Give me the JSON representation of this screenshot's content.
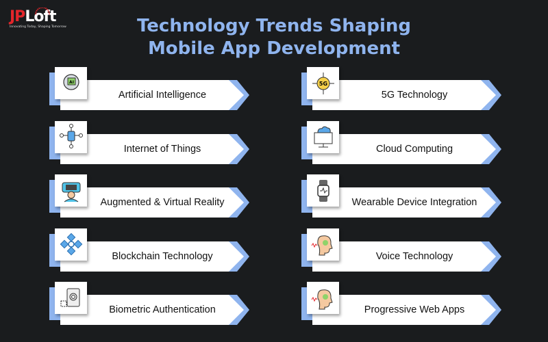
{
  "logo": {
    "brand_red": "JP",
    "brand_white": "Loft",
    "tagline": "Innovating Today, Shaping Tomorrow"
  },
  "title": {
    "line1": "Technology Trends Shaping",
    "line2": "Mobile App Development"
  },
  "colors": {
    "background": "#1a1c1e",
    "accent": "#8fb4ee",
    "brand_red": "#e3262b"
  },
  "items": [
    {
      "label": "Artificial Intelligence",
      "icon": "ai-head-icon"
    },
    {
      "label": "Internet of Things",
      "icon": "iot-network-icon"
    },
    {
      "label": "Augmented & Virtual Reality",
      "icon": "vr-headset-icon"
    },
    {
      "label": "Blockchain Technology",
      "icon": "blockchain-icon"
    },
    {
      "label": "Biometric Authentication",
      "icon": "fingerprint-icon"
    },
    {
      "label": "5G Technology",
      "icon": "5g-icon"
    },
    {
      "label": "Cloud Computing",
      "icon": "cloud-computer-icon"
    },
    {
      "label": "Wearable Device Integration",
      "icon": "smartwatch-icon"
    },
    {
      "label": "Voice Technology",
      "icon": "voice-head-icon"
    },
    {
      "label": "Progressive Web Apps",
      "icon": "voice-head-icon"
    }
  ]
}
